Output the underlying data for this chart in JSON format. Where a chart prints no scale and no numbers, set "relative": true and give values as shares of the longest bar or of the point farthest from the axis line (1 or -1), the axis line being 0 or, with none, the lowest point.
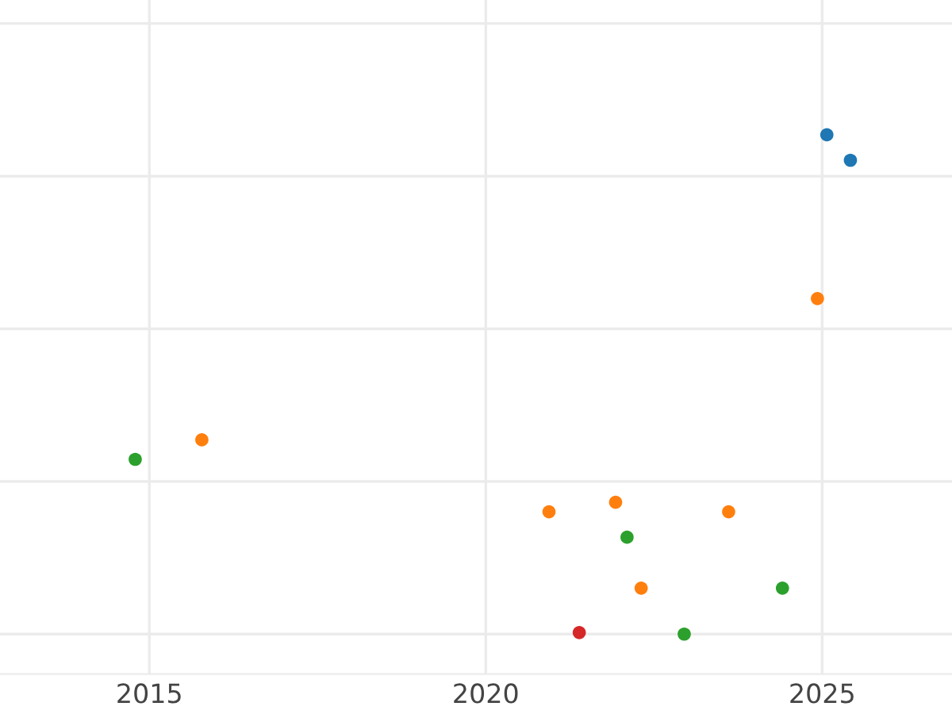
{
  "chart_data": {
    "type": "scatter",
    "relative": true,
    "xlim": [
      2012.78,
      2026.93
    ],
    "xticks": [
      2015,
      2020,
      2025
    ],
    "grid": true,
    "marker": "circle",
    "series": [
      {
        "color": "#1f77b4",
        "x": [
          2025.07,
          2025.42
        ],
        "values": [
          1.0,
          0.949
        ]
      },
      {
        "color": "#ff7f0e",
        "x": [
          2015.78,
          2020.94,
          2021.93,
          2023.61,
          2022.31,
          2024.93
        ],
        "values": [
          0.389,
          0.245,
          0.264,
          0.245,
          0.092,
          0.672
        ]
      },
      {
        "color": "#2ca02c",
        "x": [
          2014.79,
          2022.1,
          2024.41,
          2022.95
        ],
        "values": [
          0.35,
          0.194,
          0.092,
          0.0
        ]
      },
      {
        "color": "#d62728",
        "x": [
          2021.39
        ],
        "values": [
          0.003
        ]
      }
    ]
  }
}
